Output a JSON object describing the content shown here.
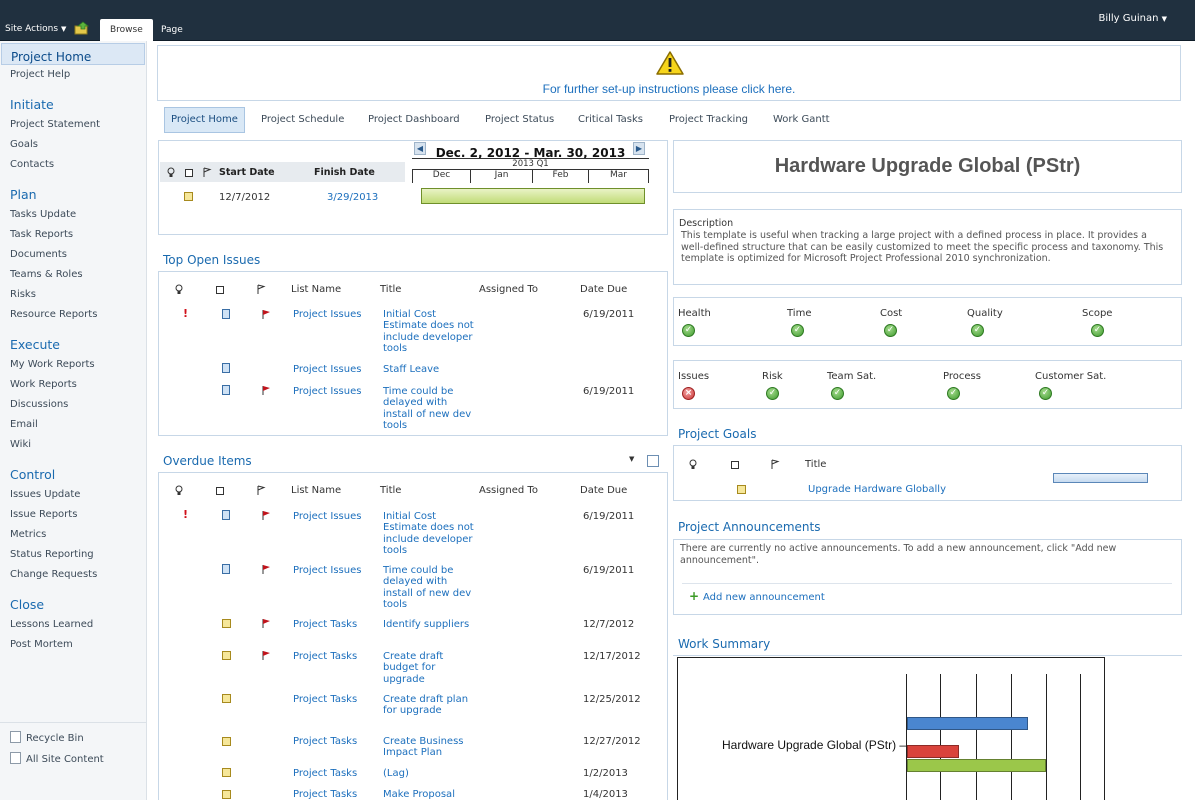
{
  "ribbon": {
    "site_actions": "Site Actions",
    "tabs": [
      "Browse",
      "Page"
    ],
    "user": "Billy Guinan"
  },
  "leftnav": {
    "home": "Project Home",
    "help": "Project Help",
    "sections": [
      {
        "heading": "Initiate",
        "items": [
          "Project Statement",
          "Goals",
          "Contacts"
        ]
      },
      {
        "heading": "Plan",
        "items": [
          "Tasks Update",
          "Task Reports",
          "Documents",
          "Teams & Roles",
          "Risks",
          "Resource Reports"
        ]
      },
      {
        "heading": "Execute",
        "items": [
          "My Work Reports",
          "Work Reports",
          "Discussions",
          "Email",
          "Wiki"
        ]
      },
      {
        "heading": "Control",
        "items": [
          "Issues Update",
          "Issue Reports",
          "Metrics",
          "Status Reporting",
          "Change Requests"
        ]
      },
      {
        "heading": "Close",
        "items": [
          "Lessons Learned",
          "Post Mortem"
        ]
      }
    ],
    "recycle_bin": "Recycle Bin",
    "all_site_content": "All Site Content"
  },
  "banner": {
    "link": "For further set-up instructions please click here."
  },
  "tabs": [
    "Project Home",
    "Project Schedule",
    "Project Dashboard",
    "Project Status",
    "Critical Tasks",
    "Project Tracking",
    "Work Gantt"
  ],
  "schedule": {
    "start_header": "Start Date",
    "finish_header": "Finish Date",
    "start": "12/7/2012",
    "finish": "3/29/2013",
    "gantt_title": "Dec. 2, 2012 - Mar. 30, 2013",
    "quarter": "2013 Q1",
    "months": [
      "Dec",
      "Jan",
      "Feb",
      "Mar"
    ]
  },
  "columns": {
    "list_name": "List Name",
    "title": "Title",
    "assigned_to": "Assigned To",
    "date_due": "Date Due"
  },
  "top_issues": {
    "title": "Top Open Issues",
    "rows": [
      {
        "list": "Project Issues",
        "title": "Initial Cost Estimate does not include developer tools",
        "due": "6/19/2011"
      },
      {
        "list": "Project Issues",
        "title": "Staff Leave",
        "due": ""
      },
      {
        "list": "Project Issues",
        "title": "Time could be delayed with install of new dev tools",
        "due": "6/19/2011"
      }
    ]
  },
  "overdue": {
    "title": "Overdue Items",
    "rows": [
      {
        "list": "Project Issues",
        "title": "Initial Cost Estimate does not include developer tools",
        "due": "6/19/2011"
      },
      {
        "list": "Project Issues",
        "title": "Time could be delayed with install of new dev tools",
        "due": "6/19/2011"
      },
      {
        "list": "Project Tasks",
        "title": "Identify suppliers",
        "due": "12/7/2012"
      },
      {
        "list": "Project Tasks",
        "title": "Create draft budget for upgrade",
        "due": "12/17/2012"
      },
      {
        "list": "Project Tasks",
        "title": "Create draft plan for upgrade",
        "due": "12/25/2012"
      },
      {
        "list": "Project Tasks",
        "title": "Create Business Impact Plan",
        "due": "12/27/2012"
      },
      {
        "list": "Project Tasks",
        "title": "(Lag)",
        "due": "1/2/2013"
      },
      {
        "list": "Project Tasks",
        "title": "Make Proposal",
        "due": "1/4/2013"
      }
    ]
  },
  "project": {
    "title": "Hardware Upgrade Global (PStr)",
    "description_label": "Description",
    "description": "This template is useful when tracking a large project with a defined process in place. It provides a well-defined structure that can be easily customized to meet the specific process and taxonomy. This template is optimized for Microsoft Project Professional 2010 synchronization."
  },
  "health": [
    {
      "label": "Health",
      "status": "ok"
    },
    {
      "label": "Time",
      "status": "ok"
    },
    {
      "label": "Cost",
      "status": "ok"
    },
    {
      "label": "Quality",
      "status": "ok"
    },
    {
      "label": "Scope",
      "status": "ok"
    }
  ],
  "issues_row": [
    {
      "label": "Issues",
      "status": "bad"
    },
    {
      "label": "Risk",
      "status": "ok"
    },
    {
      "label": "Team Sat.",
      "status": "ok"
    },
    {
      "label": "Process",
      "status": "ok"
    },
    {
      "label": "Customer Sat.",
      "status": "ok"
    }
  ],
  "goals": {
    "title": "Project Goals",
    "col_title": "Title",
    "goal": "Upgrade Hardware Globally",
    "progress": 0
  },
  "announcements": {
    "title": "Project Announcements",
    "text": "There are currently no active announcements. To add a new announcement, click \"Add new announcement\".",
    "add": "Add new announcement"
  },
  "work_summary": {
    "title": "Work Summary",
    "label": "Hardware Upgrade Global (PStr)",
    "colors": {
      "baseline": "#4a86d0",
      "actual": "#d9433c",
      "planned": "#9bc74a"
    }
  }
}
